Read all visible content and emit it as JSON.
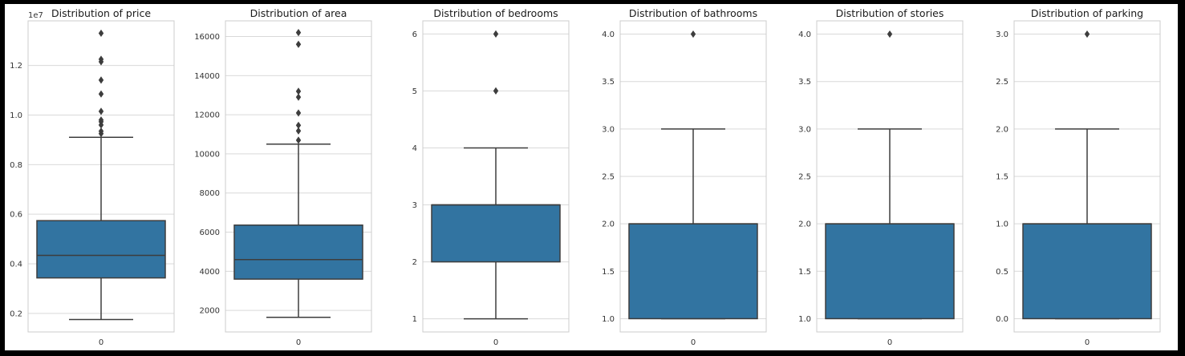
{
  "chart_data": [
    {
      "type": "boxplot",
      "title": "Distribution of price",
      "offset_text": "1e7",
      "ylim": [
        0.125,
        1.38
      ],
      "yticks": [
        0.2,
        0.4,
        0.6,
        0.8,
        1.0,
        1.2
      ],
      "ytick_labels": [
        "0.2",
        "0.4",
        "0.6",
        "0.8",
        "1.0",
        "1.2"
      ],
      "category_labels": [
        "0"
      ],
      "box": {
        "q1": 0.343,
        "median": 0.434,
        "q3": 0.574,
        "whisker_low": 0.175,
        "whisker_high": 0.91
      },
      "outliers": [
        1.33,
        1.225,
        1.215,
        1.141,
        1.085,
        1.015,
        0.98,
        0.973,
        0.96,
        0.935,
        0.925
      ],
      "grid": true
    },
    {
      "type": "boxplot",
      "title": "Distribution of area",
      "ylim": [
        900,
        16800
      ],
      "yticks": [
        2000,
        4000,
        6000,
        8000,
        10000,
        12000,
        14000,
        16000
      ],
      "ytick_labels": [
        "2000",
        "4000",
        "6000",
        "8000",
        "10000",
        "12000",
        "14000",
        "16000"
      ],
      "category_labels": [
        "0"
      ],
      "box": {
        "q1": 3600,
        "median": 4600,
        "q3": 6360,
        "whisker_low": 1650,
        "whisker_high": 10500
      },
      "outliers": [
        16200,
        15600,
        13200,
        12900,
        12090,
        11460,
        11175,
        10700
      ],
      "grid": true
    },
    {
      "type": "boxplot",
      "title": "Distribution of bedrooms",
      "ylim": [
        0.77,
        6.23
      ],
      "yticks": [
        1,
        2,
        3,
        4,
        5,
        6
      ],
      "ytick_labels": [
        "1",
        "2",
        "3",
        "4",
        "5",
        "6"
      ],
      "category_labels": [
        "0"
      ],
      "box": {
        "q1": 2,
        "median": 3,
        "q3": 3,
        "whisker_low": 1,
        "whisker_high": 4
      },
      "outliers": [
        6,
        5
      ],
      "grid": true
    },
    {
      "type": "boxplot",
      "title": "Distribution of bathrooms",
      "ylim": [
        0.86,
        4.14
      ],
      "yticks": [
        1.0,
        1.5,
        2.0,
        2.5,
        3.0,
        3.5,
        4.0
      ],
      "ytick_labels": [
        "1.0",
        "1.5",
        "2.0",
        "2.5",
        "3.0",
        "3.5",
        "4.0"
      ],
      "category_labels": [
        "0"
      ],
      "box": {
        "q1": 1,
        "median": 2,
        "q3": 2,
        "whisker_low": 1,
        "whisker_high": 3
      },
      "outliers": [
        4
      ],
      "grid": true
    },
    {
      "type": "boxplot",
      "title": "Distribution of stories",
      "ylim": [
        0.86,
        4.14
      ],
      "yticks": [
        1.0,
        1.5,
        2.0,
        2.5,
        3.0,
        3.5,
        4.0
      ],
      "ytick_labels": [
        "1.0",
        "1.5",
        "2.0",
        "2.5",
        "3.0",
        "3.5",
        "4.0"
      ],
      "category_labels": [
        "0"
      ],
      "box": {
        "q1": 1,
        "median": 2,
        "q3": 2,
        "whisker_low": 1,
        "whisker_high": 3
      },
      "outliers": [
        4
      ],
      "grid": true
    },
    {
      "type": "boxplot",
      "title": "Distribution of parking",
      "ylim": [
        -0.14,
        3.14
      ],
      "yticks": [
        0.0,
        0.5,
        1.0,
        1.5,
        2.0,
        2.5,
        3.0
      ],
      "ytick_labels": [
        "0.0",
        "0.5",
        "1.0",
        "1.5",
        "2.0",
        "2.5",
        "3.0"
      ],
      "category_labels": [
        "0"
      ],
      "box": {
        "q1": 0,
        "median": 1,
        "q3": 1,
        "whisker_low": 0,
        "whisker_high": 2
      },
      "outliers": [
        3
      ],
      "grid": true
    }
  ],
  "colors": {
    "box_fill": "#3274a1",
    "line": "#3d3d3d",
    "grid": "#d9d9d9",
    "frame": "#cccccc"
  }
}
